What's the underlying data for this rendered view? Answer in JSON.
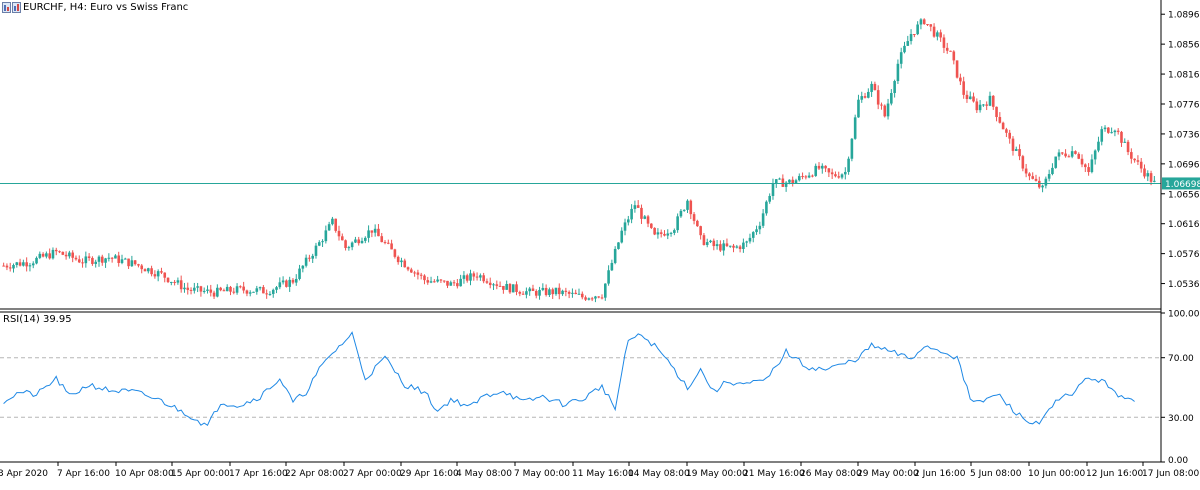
{
  "header": {
    "title": "EURCHF, H4:  Euro vs Swiss Franc",
    "icons": [
      "chart-type-icon"
    ]
  },
  "indicator": {
    "title": "RSI(14) 39.95"
  },
  "colors": {
    "bull": "#26a69a",
    "bear": "#ef5350",
    "current_line": "#26a69a",
    "rsi_line": "#1e88e5",
    "level_lines": "#b5b5b5"
  },
  "chart_data": [
    {
      "type": "candlestick",
      "symbol": "EURCHF",
      "timeframe": "H4",
      "title": "EURCHF, H4:  Euro vs Swiss Franc",
      "current_price": 1.06698,
      "current_price_label": "1.06698",
      "ylim": [
        1.0502,
        1.0915
      ],
      "y_ticks": [
        "1.08960",
        "1.08560",
        "1.08160",
        "1.07760",
        "1.07360",
        "1.06960",
        "1.06560",
        "1.06160",
        "1.05760",
        "1.05360"
      ],
      "x_ticks": [
        "3 Apr 2020",
        "7 Apr 16:00",
        "10 Apr 08:00",
        "15 Apr 00:00",
        "17 Apr 16:00",
        "22 Apr 08:00",
        "27 Apr 00:00",
        "29 Apr 16:00",
        "4 May 08:00",
        "7 May 00:00",
        "11 May 16:00",
        "14 May 08:00",
        "19 May 00:00",
        "21 May 16:00",
        "26 May 08:00",
        "29 May 00:00",
        "2 Jun 16:00",
        "5 Jun 08:00",
        "10 Jun 00:00",
        "12 Jun 16:00",
        "17 Jun 08:00"
      ],
      "close_path_anchors": [
        [
          0,
          1.056
        ],
        [
          8,
          1.0565
        ],
        [
          16,
          1.0578
        ],
        [
          24,
          1.0566
        ],
        [
          32,
          1.0571
        ],
        [
          40,
          1.0562
        ],
        [
          48,
          1.0548
        ],
        [
          56,
          1.0528
        ],
        [
          64,
          1.0524
        ],
        [
          72,
          1.0528
        ],
        [
          80,
          1.0526
        ],
        [
          88,
          1.054
        ],
        [
          96,
          1.059
        ],
        [
          100,
          1.0618
        ],
        [
          104,
          1.0584
        ],
        [
          112,
          1.0608
        ],
        [
          120,
          1.057
        ],
        [
          128,
          1.0541
        ],
        [
          136,
          1.0535
        ],
        [
          144,
          1.0548
        ],
        [
          152,
          1.0532
        ],
        [
          160,
          1.0524
        ],
        [
          168,
          1.0525
        ],
        [
          176,
          1.0518
        ],
        [
          182,
          1.0522
        ],
        [
          188,
          1.0605
        ],
        [
          192,
          1.0642
        ],
        [
          198,
          1.0598
        ],
        [
          204,
          1.0612
        ],
        [
          208,
          1.0648
        ],
        [
          212,
          1.0595
        ],
        [
          216,
          1.0586
        ],
        [
          222,
          1.0583
        ],
        [
          226,
          1.059
        ],
        [
          230,
          1.0618
        ],
        [
          234,
          1.067
        ],
        [
          240,
          1.0672
        ],
        [
          248,
          1.069
        ],
        [
          252,
          1.068
        ],
        [
          256,
          1.0685
        ],
        [
          260,
          1.078
        ],
        [
          264,
          1.08
        ],
        [
          268,
          1.076
        ],
        [
          272,
          1.083
        ],
        [
          276,
          1.087
        ],
        [
          280,
          1.0888
        ],
        [
          284,
          1.0866
        ],
        [
          288,
          1.0842
        ],
        [
          292,
          1.079
        ],
        [
          296,
          1.0772
        ],
        [
          300,
          1.0782
        ],
        [
          306,
          1.0726
        ],
        [
          312,
          1.0678
        ],
        [
          316,
          1.0662
        ],
        [
          320,
          1.0706
        ],
        [
          326,
          1.0714
        ],
        [
          330,
          1.0684
        ],
        [
          334,
          1.074
        ],
        [
          338,
          1.0745
        ],
        [
          342,
          1.0712
        ],
        [
          346,
          1.069
        ],
        [
          350,
          1.067
        ]
      ]
    },
    {
      "type": "line",
      "name": "RSI(14)",
      "last_value": 39.95,
      "levels": [
        70,
        30
      ],
      "ylim": [
        0,
        100
      ],
      "y_ticks": [
        "100.00",
        "70.00",
        "30.00",
        "0.00"
      ],
      "rsi_anchors": [
        [
          0,
          41
        ],
        [
          5,
          47
        ],
        [
          10,
          45
        ],
        [
          16,
          56
        ],
        [
          20,
          44
        ],
        [
          26,
          52
        ],
        [
          32,
          48
        ],
        [
          40,
          47
        ],
        [
          48,
          41
        ],
        [
          56,
          32
        ],
        [
          62,
          24
        ],
        [
          66,
          40
        ],
        [
          72,
          38
        ],
        [
          78,
          44
        ],
        [
          84,
          56
        ],
        [
          88,
          40
        ],
        [
          92,
          47
        ],
        [
          96,
          62
        ],
        [
          100,
          73
        ],
        [
          106,
          86
        ],
        [
          110,
          56
        ],
        [
          116,
          70
        ],
        [
          122,
          52
        ],
        [
          128,
          47
        ],
        [
          132,
          34
        ],
        [
          136,
          42
        ],
        [
          142,
          37
        ],
        [
          146,
          44
        ],
        [
          152,
          48
        ],
        [
          158,
          40
        ],
        [
          164,
          44
        ],
        [
          170,
          39
        ],
        [
          176,
          42
        ],
        [
          182,
          51
        ],
        [
          186,
          36
        ],
        [
          190,
          82
        ],
        [
          194,
          85
        ],
        [
          198,
          78
        ],
        [
          202,
          68
        ],
        [
          208,
          50
        ],
        [
          212,
          62
        ],
        [
          216,
          47
        ],
        [
          220,
          54
        ],
        [
          226,
          52
        ],
        [
          232,
          55
        ],
        [
          238,
          74
        ],
        [
          244,
          64
        ],
        [
          250,
          62
        ],
        [
          256,
          66
        ],
        [
          260,
          70
        ],
        [
          264,
          78
        ],
        [
          270,
          74
        ],
        [
          276,
          69
        ],
        [
          280,
          78
        ],
        [
          286,
          74
        ],
        [
          290,
          70
        ],
        [
          294,
          42
        ],
        [
          298,
          40
        ],
        [
          302,
          46
        ],
        [
          308,
          33
        ],
        [
          312,
          26
        ],
        [
          316,
          28
        ],
        [
          320,
          40
        ],
        [
          326,
          48
        ],
        [
          330,
          57
        ],
        [
          336,
          52
        ],
        [
          340,
          43
        ],
        [
          344,
          40
        ]
      ]
    }
  ]
}
